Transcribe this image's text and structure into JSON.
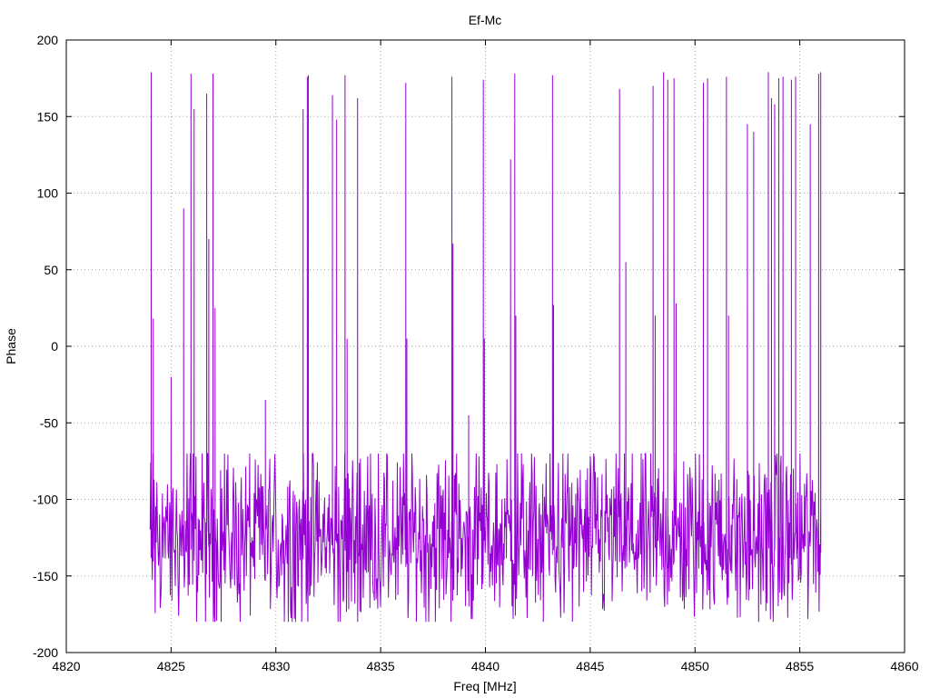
{
  "chart_data": {
    "type": "line",
    "title": "Ef-Mc",
    "xlabel": "Freq [MHz]",
    "ylabel": "Phase",
    "xlim": [
      4820,
      4860
    ],
    "ylim": [
      -200,
      200
    ],
    "xticks": [
      4820,
      4825,
      4830,
      4835,
      4840,
      4845,
      4850,
      4855,
      4860
    ],
    "yticks": [
      -200,
      -150,
      -100,
      -50,
      0,
      50,
      100,
      150,
      200
    ],
    "xtick_labels": [
      "4820",
      "4825",
      "4830",
      "4835",
      "4840",
      "4845",
      "4850",
      "4855",
      "4860"
    ],
    "ytick_labels": [
      "-200",
      "-150",
      "-100",
      "-50",
      "0",
      "50",
      "100",
      "150",
      "200"
    ],
    "grid": true,
    "line_color": "#9400d3",
    "series": [
      {
        "x_start": 4824.0,
        "x_end": 4856.0,
        "points": 1200,
        "baseline_range": [
          -175,
          -70
        ],
        "baseline_mean": -125,
        "spikes": [
          {
            "x": 4824.05,
            "y": 179
          },
          {
            "x": 4824.15,
            "y": 18
          },
          {
            "x": 4825.0,
            "y": -20
          },
          {
            "x": 4825.6,
            "y": 90
          },
          {
            "x": 4825.95,
            "y": 178
          },
          {
            "x": 4826.1,
            "y": 155
          },
          {
            "x": 4826.7,
            "y": 165
          },
          {
            "x": 4826.8,
            "y": 70
          },
          {
            "x": 4827.0,
            "y": 178
          },
          {
            "x": 4827.1,
            "y": 25
          },
          {
            "x": 4829.5,
            "y": -35
          },
          {
            "x": 4831.3,
            "y": 155
          },
          {
            "x": 4831.5,
            "y": 176
          },
          {
            "x": 4831.55,
            "y": 177
          },
          {
            "x": 4832.7,
            "y": 164
          },
          {
            "x": 4832.9,
            "y": 148
          },
          {
            "x": 4833.3,
            "y": 177
          },
          {
            "x": 4833.4,
            "y": 5
          },
          {
            "x": 4833.9,
            "y": 162
          },
          {
            "x": 4836.2,
            "y": 172
          },
          {
            "x": 4836.25,
            "y": 5
          },
          {
            "x": 4838.4,
            "y": 176
          },
          {
            "x": 4838.45,
            "y": 67
          },
          {
            "x": 4839.2,
            "y": -45
          },
          {
            "x": 4839.9,
            "y": 174
          },
          {
            "x": 4839.95,
            "y": 5
          },
          {
            "x": 4841.2,
            "y": 122
          },
          {
            "x": 4841.4,
            "y": 178
          },
          {
            "x": 4841.45,
            "y": 20
          },
          {
            "x": 4843.2,
            "y": 177
          },
          {
            "x": 4843.25,
            "y": 27
          },
          {
            "x": 4846.4,
            "y": 168
          },
          {
            "x": 4846.7,
            "y": 55
          },
          {
            "x": 4848.0,
            "y": 170
          },
          {
            "x": 4848.1,
            "y": 20
          },
          {
            "x": 4848.5,
            "y": 179
          },
          {
            "x": 4848.7,
            "y": 174
          },
          {
            "x": 4849.0,
            "y": 175
          },
          {
            "x": 4849.1,
            "y": 28
          },
          {
            "x": 4850.4,
            "y": 172
          },
          {
            "x": 4850.6,
            "y": 175
          },
          {
            "x": 4851.5,
            "y": 176
          },
          {
            "x": 4851.6,
            "y": 20
          },
          {
            "x": 4852.5,
            "y": 145
          },
          {
            "x": 4852.8,
            "y": 140
          },
          {
            "x": 4853.5,
            "y": 179
          },
          {
            "x": 4853.65,
            "y": 162
          },
          {
            "x": 4853.8,
            "y": 158
          },
          {
            "x": 4854.0,
            "y": 175
          },
          {
            "x": 4854.2,
            "y": 176
          },
          {
            "x": 4854.6,
            "y": 174
          },
          {
            "x": 4854.8,
            "y": 176
          },
          {
            "x": 4855.5,
            "y": 145
          },
          {
            "x": 4855.9,
            "y": 178
          },
          {
            "x": 4856.0,
            "y": 179
          }
        ]
      }
    ]
  }
}
